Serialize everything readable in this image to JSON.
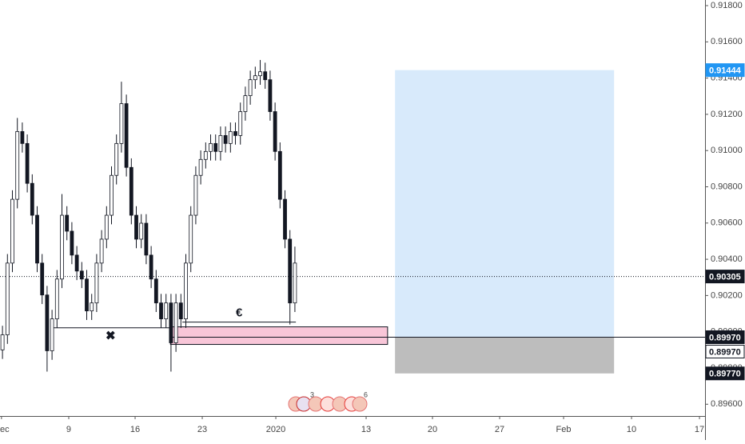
{
  "chart_data": {
    "type": "candlestick",
    "x": [
      0,
      1,
      2,
      3,
      4,
      5,
      6,
      7,
      8,
      9,
      10,
      11,
      12,
      13,
      14,
      15,
      16,
      17,
      18,
      19,
      20,
      21,
      22,
      23,
      24,
      25,
      26,
      27,
      28,
      29,
      30,
      31,
      32,
      33,
      34,
      35,
      36,
      37,
      38,
      39,
      40,
      41,
      42,
      43,
      44,
      45,
      46,
      47,
      48,
      49,
      50,
      51,
      52,
      53,
      54,
      55,
      56,
      57,
      58,
      59
    ],
    "open": [
      0.899,
      0.89983,
      0.90379,
      0.90731,
      0.91105,
      0.91039,
      0.90819,
      0.90643,
      0.90379,
      0.90203,
      0.89895,
      0.90071,
      0.90291,
      0.90643,
      0.90555,
      0.90423,
      0.90335,
      0.90291,
      0.90115,
      0.90159,
      0.90379,
      0.90511,
      0.90643,
      0.90863,
      0.91039,
      0.91259,
      0.90907,
      0.90643,
      0.90511,
      0.90599,
      0.90423,
      0.90291,
      0.90159,
      0.90071,
      0.90159,
      0.89939,
      0.90159,
      0.90071,
      0.90379,
      0.90643,
      0.90863,
      0.90951,
      0.90995,
      0.91039,
      0.90995,
      0.91083,
      0.91039,
      0.91105,
      0.91083,
      0.91215,
      0.91303,
      0.91391,
      0.91413,
      0.91435,
      0.91391,
      0.91215,
      0.90995,
      0.90731,
      0.90511,
      0.90159
    ],
    "high": [
      0.90033,
      0.90429,
      0.90781,
      0.9118,
      0.91155,
      0.91089,
      0.90869,
      0.90693,
      0.90429,
      0.90253,
      0.90121,
      0.90341,
      0.9076,
      0.90693,
      0.90605,
      0.90473,
      0.90385,
      0.90341,
      0.90209,
      0.90429,
      0.90561,
      0.90693,
      0.90913,
      0.91089,
      0.9138,
      0.91309,
      0.90957,
      0.90693,
      0.90649,
      0.90649,
      0.90473,
      0.90341,
      0.90209,
      0.90209,
      0.90209,
      0.90209,
      0.90209,
      0.90429,
      0.90693,
      0.90913,
      0.91001,
      0.91045,
      0.91089,
      0.91089,
      0.91133,
      0.91133,
      0.91155,
      0.91155,
      0.91265,
      0.91353,
      0.91441,
      0.91463,
      0.915,
      0.91485,
      0.91441,
      0.91265,
      0.91045,
      0.90781,
      0.90561,
      0.9047
    ],
    "low": [
      0.8985,
      0.89933,
      0.90329,
      0.90681,
      0.90989,
      0.90769,
      0.90593,
      0.90329,
      0.90153,
      0.8978,
      0.89845,
      0.90021,
      0.90241,
      0.90505,
      0.90373,
      0.90285,
      0.90241,
      0.90065,
      0.90065,
      0.90109,
      0.90329,
      0.90461,
      0.90593,
      0.90813,
      0.90989,
      0.90857,
      0.90593,
      0.90461,
      0.90461,
      0.90373,
      0.90241,
      0.90109,
      0.90021,
      0.90021,
      0.8978,
      0.89889,
      0.90021,
      0.90021,
      0.90329,
      0.90593,
      0.90813,
      0.90901,
      0.90945,
      0.90945,
      0.90945,
      0.90989,
      0.90989,
      0.91033,
      0.91033,
      0.91165,
      0.91253,
      0.91341,
      0.91363,
      0.91341,
      0.91165,
      0.90945,
      0.90681,
      0.90461,
      0.9004,
      0.90109
    ],
    "close": [
      0.89983,
      0.90379,
      0.90731,
      0.91105,
      0.91039,
      0.90819,
      0.90643,
      0.90379,
      0.90203,
      0.89895,
      0.90071,
      0.90291,
      0.90643,
      0.90555,
      0.90423,
      0.90335,
      0.90291,
      0.90115,
      0.90159,
      0.90379,
      0.90511,
      0.90643,
      0.90863,
      0.91039,
      0.91259,
      0.90907,
      0.90643,
      0.90511,
      0.90599,
      0.90423,
      0.90291,
      0.90159,
      0.90071,
      0.90159,
      0.89939,
      0.90159,
      0.90071,
      0.90379,
      0.90643,
      0.90863,
      0.90951,
      0.90995,
      0.91039,
      0.90995,
      0.91083,
      0.91039,
      0.91105,
      0.91083,
      0.91215,
      0.91303,
      0.91391,
      0.91413,
      0.91435,
      0.91391,
      0.91215,
      0.90995,
      0.90731,
      0.90511,
      0.90159,
      0.90379
    ],
    "up_color": "#ffffff",
    "down_color": "#131722",
    "xlim": [
      -0.5,
      141.75
    ],
    "xticks": [
      {
        "value": -0.2,
        "label": "Dec"
      },
      {
        "value": 13.37,
        "label": "9"
      },
      {
        "value": 26.76,
        "label": "16"
      },
      {
        "value": 40.31,
        "label": "23"
      },
      {
        "value": 55.15,
        "label": "2020"
      },
      {
        "value": 73.37,
        "label": "13"
      },
      {
        "value": 86.76,
        "label": "20"
      },
      {
        "value": 100.31,
        "label": "27"
      },
      {
        "value": 113.21,
        "label": "Feb"
      },
      {
        "value": 126.92,
        "label": "10"
      },
      {
        "value": 140.63,
        "label": "17"
      }
    ],
    "ylim": [
      0.89535,
      0.91831
    ],
    "yticks": [
      {
        "value": 0.918,
        "label": "0.91800"
      },
      {
        "value": 0.916,
        "label": "0.91600"
      },
      {
        "value": 0.914,
        "label": "0.91400"
      },
      {
        "value": 0.912,
        "label": "0.91200"
      },
      {
        "value": 0.91,
        "label": "0.91000"
      },
      {
        "value": 0.908,
        "label": "0.90800"
      },
      {
        "value": 0.906,
        "label": "0.90600"
      },
      {
        "value": 0.904,
        "label": "0.90400"
      },
      {
        "value": 0.902,
        "label": "0.90200"
      },
      {
        "value": 0.9,
        "label": "0.90000"
      },
      {
        "value": 0.898,
        "label": "0.89800"
      },
      {
        "value": 0.896,
        "label": "0.89600"
      }
    ],
    "price_line": 0.90305,
    "position": {
      "x": [
        79.2,
        123.4
      ],
      "target": 0.91444,
      "entry": 0.8997,
      "stop": 0.8977,
      "profit_color": "#d8eafb",
      "loss_color": "#bdbdbd"
    },
    "zone": {
      "x": [
        33.9,
        77.7
      ],
      "top": 0.90027,
      "bottom": 0.8993,
      "color": "#f8c6d8"
    },
    "entry_line": {
      "x": [
        33.9,
        141.75
      ],
      "y": 0.8997
    },
    "marked_lines": [
      {
        "x": [
          9.7,
          33.9
        ],
        "y": 0.90022,
        "label": "✖"
      },
      {
        "x": [
          36.3,
          59.2
        ],
        "y": 0.90053,
        "label": "€"
      }
    ],
    "price_labels": [
      {
        "value": 0.91444,
        "label": "0.91444",
        "color": "#2196f3"
      },
      {
        "value": 0.90305,
        "label": "0.90305",
        "color": "#131722"
      },
      {
        "value": 0.8997,
        "label": "0.89970",
        "color": "#131722"
      },
      {
        "value": 0.8997,
        "label": "0.89970",
        "color": "#ffffff"
      },
      {
        "value": 0.8977,
        "label": "0.89770",
        "color": "#131722"
      }
    ],
    "events": [
      3,
      6
    ]
  }
}
